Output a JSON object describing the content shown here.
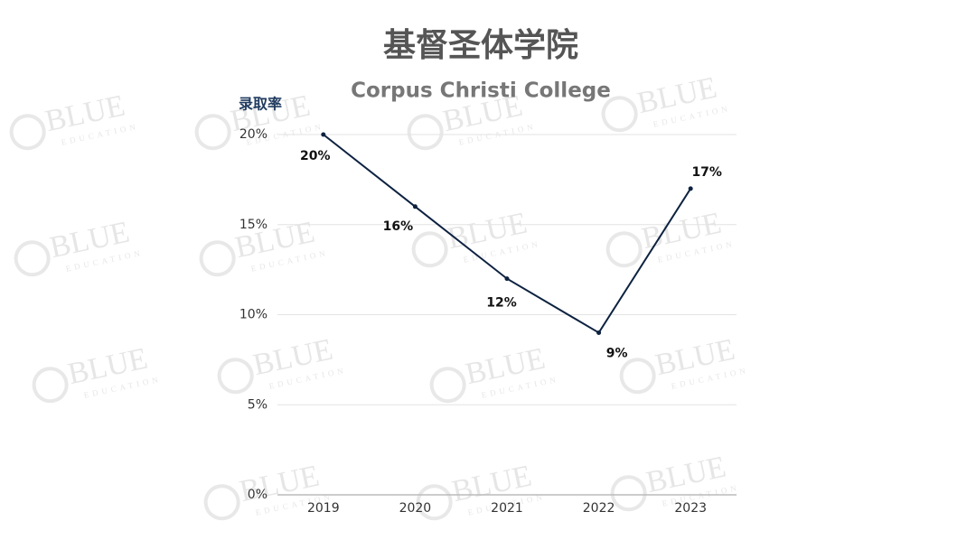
{
  "chart_data": {
    "type": "line",
    "title": "基督圣体学院",
    "subtitle": "Corpus Christi College",
    "y_label": "录取率",
    "watermark": {
      "brand": "BLUE",
      "sub": "EDUCATION"
    },
    "categories": [
      "2019",
      "2020",
      "2021",
      "2022",
      "2023"
    ],
    "values": [
      20,
      16,
      12,
      9,
      17
    ],
    "value_labels": [
      "20%",
      "16%",
      "12%",
      "9%",
      "17%"
    ],
    "color": "#0d2240",
    "ylim": [
      0,
      20
    ],
    "yticks": [
      {
        "value": 0,
        "label": "0%"
      },
      {
        "value": 5,
        "label": "5%"
      },
      {
        "value": 10,
        "label": "10%"
      },
      {
        "value": 15,
        "label": "15%"
      },
      {
        "value": 20,
        "label": "20%"
      }
    ],
    "grid": true
  }
}
